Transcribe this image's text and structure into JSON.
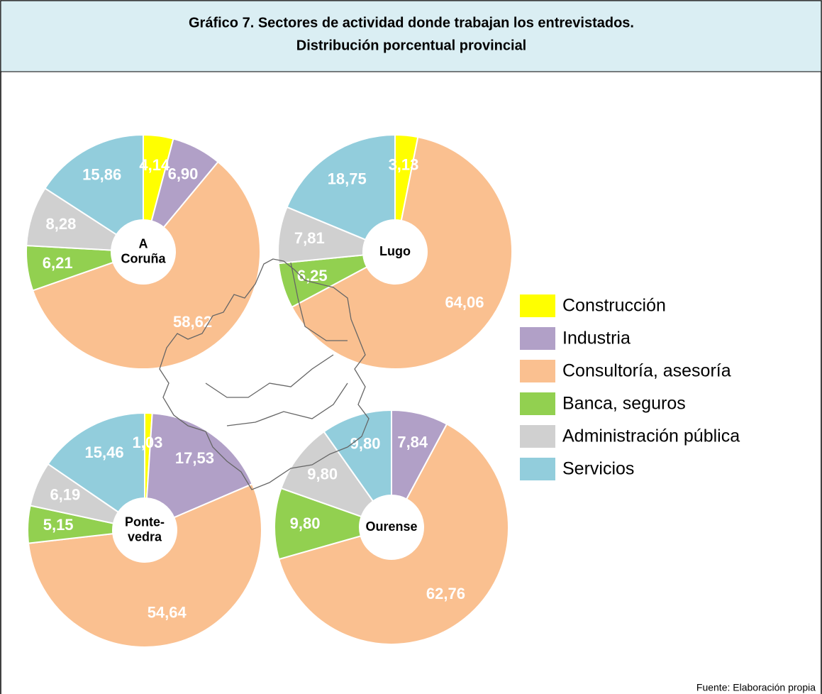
{
  "header": {
    "title": [
      "Gráfico 7. Sectores de actividad donde trabajan los entrevistados.",
      "Distribución porcentual provincial"
    ]
  },
  "legend": {
    "items": [
      {
        "name": "Construcción",
        "color": "#ffff00"
      },
      {
        "name": "Industria",
        "color": "#b1a0c7"
      },
      {
        "name": "Consultoría, asesoría",
        "color": "#fac090"
      },
      {
        "name": "Banca, seguros",
        "color": "#92d050"
      },
      {
        "name": "Administración pública",
        "color": "#d0d0d0"
      },
      {
        "name": "Servicios",
        "color": "#92cddc"
      }
    ]
  },
  "chart_data": [
    {
      "type": "pie",
      "title": [
        "A",
        "Coruña"
      ],
      "values": [
        4.14,
        6.9,
        58.62,
        6.21,
        8.28,
        15.86
      ],
      "value_labels": [
        "4,14",
        "6,90",
        "58,62",
        "6,21",
        "8,28",
        "15,86"
      ]
    },
    {
      "type": "pie",
      "title": [
        "Lugo"
      ],
      "values": [
        3.13,
        null,
        64.06,
        6.25,
        7.81,
        18.75
      ],
      "value_labels": [
        "3,13",
        null,
        "64,06",
        "6,25",
        "7,81",
        "18,75"
      ]
    },
    {
      "type": "pie",
      "title": [
        "Ponte-",
        "vedra"
      ],
      "values": [
        1.03,
        17.53,
        54.64,
        5.15,
        6.19,
        15.46
      ],
      "value_labels": [
        "1,03",
        "17,53",
        "54,64",
        "5,15",
        "6,19",
        "15,46"
      ]
    },
    {
      "type": "pie",
      "title": [
        "Ourense"
      ],
      "values": [
        null,
        7.84,
        62.76,
        9.8,
        9.8,
        9.8
      ],
      "value_labels": [
        null,
        "7,84",
        "62,76",
        "9,80",
        "9,80",
        "9,80"
      ]
    }
  ],
  "source": "Fuente: Elaboración propia"
}
